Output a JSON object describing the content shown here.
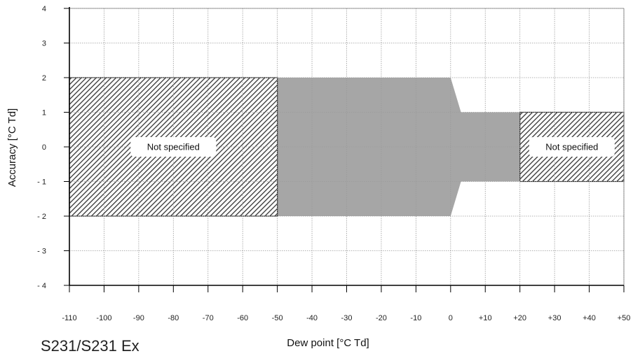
{
  "chart_data": {
    "type": "area",
    "title": "",
    "model_label": "S231/S231 Ex",
    "xlabel": "Dew point [°C Td]",
    "ylabel": "Accuracy [°C Td]",
    "xlim": [
      -110,
      50
    ],
    "ylim": [
      -4,
      4
    ],
    "x_ticks": [
      -110,
      -100,
      -90,
      -80,
      -70,
      -60,
      -50,
      -40,
      -30,
      -20,
      -10,
      0,
      10,
      20,
      30,
      40,
      50
    ],
    "x_tick_labels": [
      "-110",
      "-100",
      "-90",
      "-80",
      "-70",
      "-60",
      "-50",
      "-40",
      "-30",
      "-20",
      "-10",
      "0",
      "+10",
      "+20",
      "+30",
      "+40",
      "+50"
    ],
    "y_ticks": [
      4,
      3,
      2,
      1,
      0,
      -1,
      -2,
      -3,
      -4
    ],
    "y_tick_labels": [
      "4",
      "3",
      "2",
      "1",
      "0",
      "- 1",
      "- 2",
      "- 3",
      "- 4"
    ],
    "grid": true,
    "accuracy_band": {
      "name": "",
      "color": "#a6a6a6",
      "upper": [
        [
          -50,
          2
        ],
        [
          0,
          2
        ],
        [
          3,
          1
        ],
        [
          20,
          1
        ]
      ],
      "lower": [
        [
          -50,
          -2
        ],
        [
          0,
          -2
        ],
        [
          3,
          -1
        ],
        [
          20,
          -1
        ]
      ]
    },
    "not_specified_regions": [
      {
        "label": "Not specified",
        "x": [
          -110,
          -50
        ],
        "y": [
          -2,
          2
        ],
        "label_at": [
          -80,
          0
        ]
      },
      {
        "label": "Not specified",
        "x": [
          20,
          50
        ],
        "y": [
          -1,
          1
        ],
        "label_at": [
          35,
          0
        ]
      }
    ]
  }
}
